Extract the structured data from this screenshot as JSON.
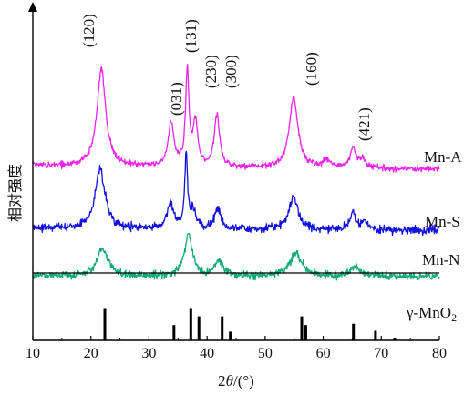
{
  "chart_data": {
    "type": "line",
    "xlabel_prefix": "2",
    "xlabel_theta": "θ",
    "xlabel_suffix": "/(°)",
    "ylabel": "相对强度",
    "xlim": [
      10,
      80
    ],
    "x_ticks": [
      "10",
      "20",
      "30",
      "40",
      "50",
      "60",
      "70",
      "80"
    ],
    "grid": false,
    "series": [
      {
        "name": "Mn-A",
        "color": "#ee22ee",
        "baseline": 18,
        "noise": 1.6,
        "peaks": [
          {
            "x": 21.8,
            "h": 107,
            "w": 0.9
          },
          {
            "x": 33.8,
            "h": 47,
            "w": 0.6
          },
          {
            "x": 36.6,
            "h": 103,
            "w": 0.35
          },
          {
            "x": 38.0,
            "h": 48,
            "w": 0.5
          },
          {
            "x": 41.7,
            "h": 57,
            "w": 0.55
          },
          {
            "x": 54.9,
            "h": 77,
            "w": 0.9
          },
          {
            "x": 60.5,
            "h": 8,
            "w": 0.8
          },
          {
            "x": 65.1,
            "h": 21,
            "w": 0.6
          },
          {
            "x": 66.8,
            "h": 9,
            "w": 0.7
          }
        ]
      },
      {
        "name": "Mn-S",
        "color": "#1111dd",
        "baseline": 9,
        "noise": 2.2,
        "peaks": [
          {
            "x": 21.6,
            "h": 66,
            "w": 1.0
          },
          {
            "x": 33.7,
            "h": 28,
            "w": 0.7
          },
          {
            "x": 36.4,
            "h": 79,
            "w": 0.3
          },
          {
            "x": 37.6,
            "h": 20,
            "w": 0.6
          },
          {
            "x": 41.8,
            "h": 23,
            "w": 0.6
          },
          {
            "x": 54.9,
            "h": 37,
            "w": 0.9
          },
          {
            "x": 65.1,
            "h": 22,
            "w": 0.4
          },
          {
            "x": 67.0,
            "h": 9,
            "w": 0.8
          }
        ]
      },
      {
        "name": "Mn-N",
        "color": "#11aa77",
        "baseline": 3,
        "noise": 2.2,
        "peaks": [
          {
            "x": 22.0,
            "h": 30,
            "w": 1.1
          },
          {
            "x": 36.8,
            "h": 45,
            "w": 0.8
          },
          {
            "x": 42.0,
            "h": 17,
            "w": 0.8
          },
          {
            "x": 55.3,
            "h": 26,
            "w": 1.1
          },
          {
            "x": 65.5,
            "h": 10,
            "w": 0.9
          }
        ]
      }
    ],
    "peak_labels": [
      {
        "text": "(120)",
        "x": 21.8,
        "rotated": true
      },
      {
        "text": "(031)",
        "x": 33.8,
        "rotated": true
      },
      {
        "text": "(131)",
        "x": 36.6,
        "rotated": true
      },
      {
        "text": "(230)",
        "x": 38.0,
        "rotated": true
      },
      {
        "text": "(300)",
        "x": 41.7,
        "rotated": true
      },
      {
        "text": "(160)",
        "x": 54.9,
        "rotated": true
      },
      {
        "text": "(421)",
        "x": 65.3,
        "rotated": true
      }
    ],
    "reference": {
      "label_prefix": "γ-MnO",
      "label_sub": "2",
      "lines": [
        {
          "x": 22.4,
          "h": 0.72
        },
        {
          "x": 34.3,
          "h": 0.35
        },
        {
          "x": 37.2,
          "h": 0.72
        },
        {
          "x": 38.6,
          "h": 0.55
        },
        {
          "x": 42.6,
          "h": 0.55
        },
        {
          "x": 44.0,
          "h": 0.2
        },
        {
          "x": 56.3,
          "h": 0.55
        },
        {
          "x": 57.0,
          "h": 0.35
        },
        {
          "x": 65.2,
          "h": 0.38
        },
        {
          "x": 69.0,
          "h": 0.22
        },
        {
          "x": 72.3,
          "h": 0.06
        }
      ]
    }
  }
}
